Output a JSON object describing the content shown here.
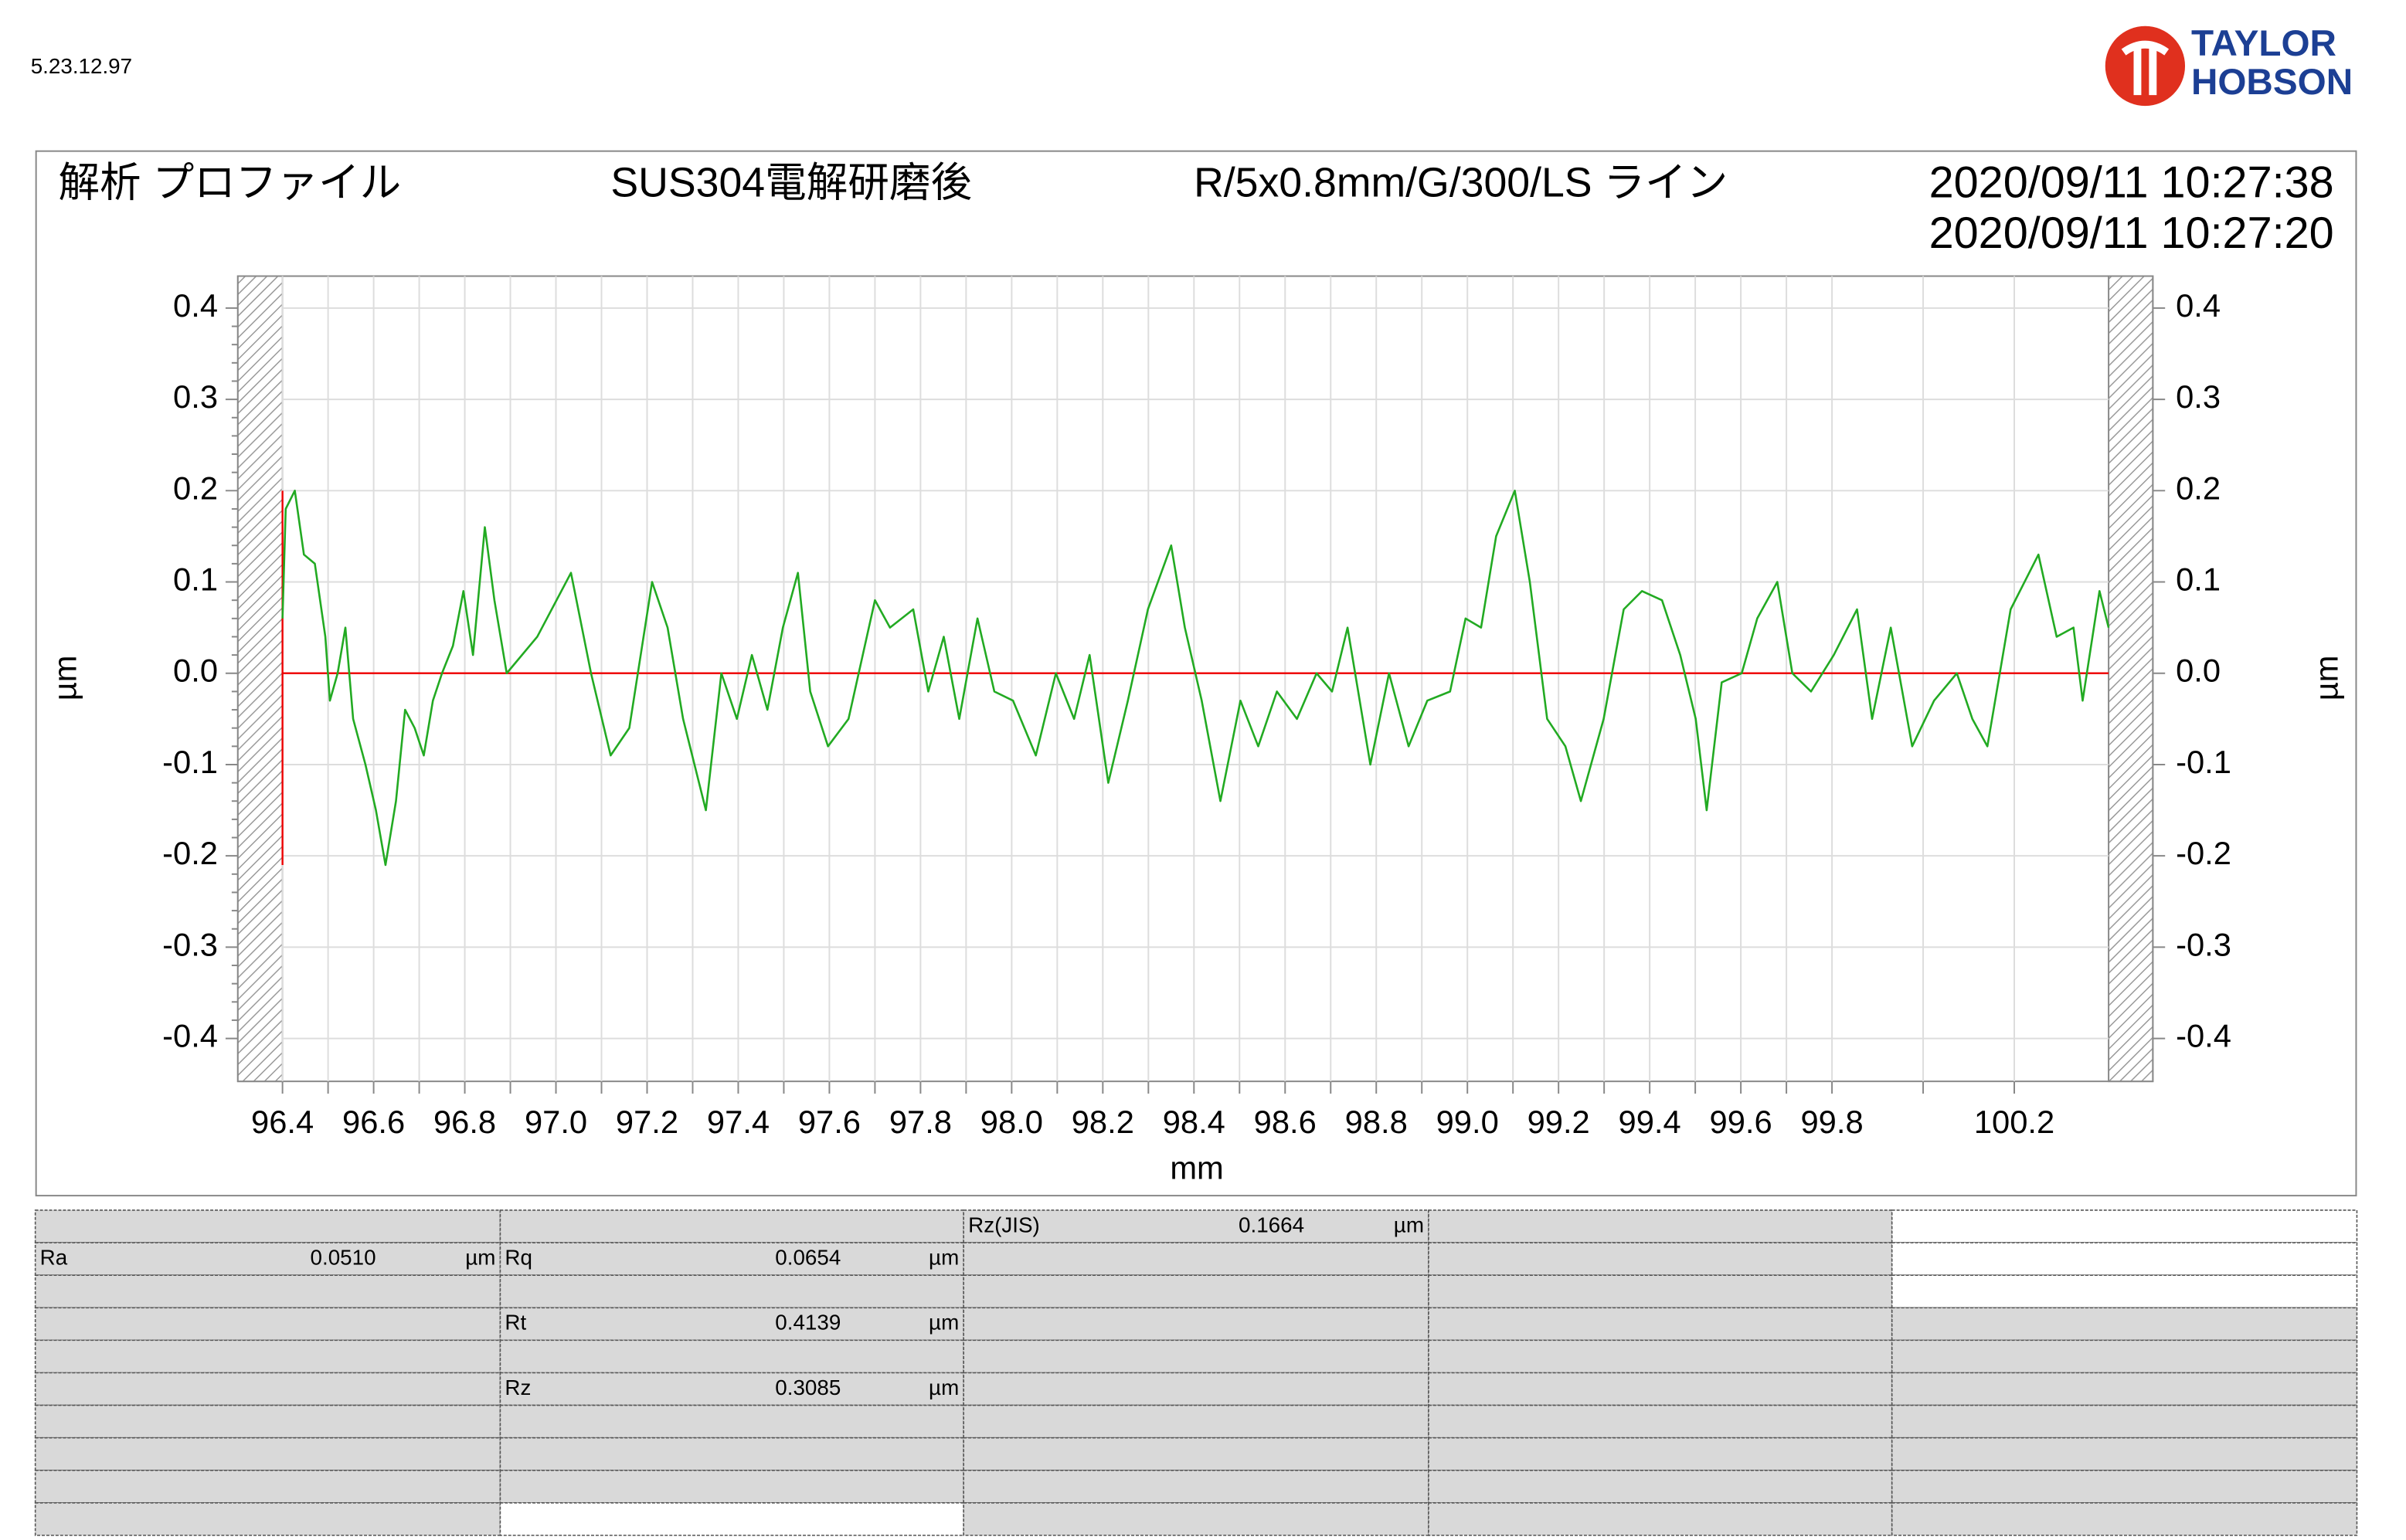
{
  "header": {
    "version": "5.23.12.97",
    "logo_line1": "TAYLOR",
    "logo_line2": "HOBSON",
    "analysis": "解析 プロファイル",
    "sample": "SUS304電解研磨後",
    "conditions": "R/5x0.8mm/G/300/LS ライン",
    "date1": "2020/09/11 10:27:38",
    "date2": "2020/09/11 10:27:20"
  },
  "chart_data": {
    "type": "line",
    "xlabel": "mm",
    "ylabel": "µm",
    "y2label": "µm",
    "xlim": [
      96.302,
      100.504
    ],
    "ylim": [
      -0.447,
      0.435
    ],
    "xticks": [
      96.4,
      96.6,
      96.8,
      {
        "value": 97.0,
        "label": "97.0"
      },
      97.2,
      97.4,
      97.6,
      97.8,
      {
        "value": 98.0,
        "label": "98.0"
      },
      98.2,
      98.4,
      98.6,
      98.8,
      {
        "value": 99.0,
        "label": "99.0"
      },
      99.2,
      99.4,
      99.6,
      99.8,
      100.2
    ],
    "yticks": [
      -0.4,
      -0.3,
      -0.2,
      -0.1,
      {
        "value": 0,
        "label": "0.0"
      },
      0.1,
      0.2,
      0.3,
      0.4
    ],
    "grid": true,
    "series": [
      {
        "color": "#22aa22",
        "x": [
          96.4,
          96.407,
          96.427,
          96.447,
          96.471,
          96.494,
          96.504,
          96.521,
          96.538,
          96.555,
          96.582,
          96.605,
          96.626,
          96.649,
          96.669,
          96.69,
          96.71,
          96.73,
          96.75,
          96.774,
          96.797,
          96.818,
          96.844,
          96.865,
          96.892,
          96.959,
          97.033,
          97.077,
          97.12,
          97.161,
          97.211,
          97.245,
          97.279,
          97.329,
          97.363,
          97.397,
          97.43,
          97.464,
          97.498,
          97.531,
          97.558,
          97.597,
          97.642,
          97.7,
          97.733,
          97.784,
          97.817,
          97.851,
          97.885,
          97.925,
          97.962,
          98.003,
          98.053,
          98.097,
          98.137,
          98.171,
          98.212,
          98.255,
          98.299,
          98.35,
          98.38,
          98.417,
          98.458,
          98.502,
          98.541,
          98.582,
          98.626,
          98.669,
          98.703,
          98.737,
          98.787,
          98.828,
          98.871,
          98.912,
          98.962,
          98.996,
          99.03,
          99.063,
          99.104,
          99.137,
          99.175,
          99.215,
          99.249,
          99.299,
          99.343,
          99.383,
          99.427,
          99.467,
          99.501,
          99.525,
          99.558,
          99.602,
          99.636,
          99.68,
          99.713,
          99.754,
          99.804,
          99.855,
          99.888,
          99.929,
          99.976,
          100.024,
          100.074,
          100.108,
          100.141,
          100.192,
          100.253,
          100.293,
          100.33,
          100.35,
          100.387,
          100.407
        ],
        "values": [
          0.06,
          0.18,
          0.2,
          0.13,
          0.12,
          0.04,
          -0.03,
          0.0,
          0.05,
          -0.05,
          -0.1,
          -0.15,
          -0.21,
          -0.14,
          -0.04,
          -0.06,
          -0.09,
          -0.03,
          0.0,
          0.03,
          0.09,
          0.02,
          0.16,
          0.08,
          0.0,
          0.04,
          0.11,
          0.0,
          -0.09,
          -0.06,
          0.1,
          0.05,
          -0.05,
          -0.15,
          0.0,
          -0.05,
          0.02,
          -0.04,
          0.05,
          0.11,
          -0.02,
          -0.08,
          -0.05,
          0.08,
          0.05,
          0.07,
          -0.02,
          0.04,
          -0.05,
          0.06,
          -0.02,
          -0.03,
          -0.09,
          0.0,
          -0.05,
          0.02,
          -0.12,
          -0.03,
          0.07,
          0.14,
          0.05,
          -0.03,
          -0.14,
          -0.03,
          -0.08,
          -0.02,
          -0.05,
          0.0,
          -0.02,
          0.05,
          -0.1,
          0.0,
          -0.08,
          -0.03,
          -0.02,
          0.06,
          0.05,
          0.15,
          0.2,
          0.1,
          -0.05,
          -0.08,
          -0.14,
          -0.05,
          0.07,
          0.09,
          0.08,
          0.02,
          -0.05,
          -0.15,
          -0.01,
          0.0,
          0.06,
          0.1,
          0.0,
          -0.02,
          0.02,
          0.07,
          -0.05,
          0.05,
          -0.08,
          -0.03,
          0.0,
          -0.05,
          -0.08,
          0.07,
          0.13,
          0.04,
          0.05,
          -0.03,
          0.09,
          0.05
        ]
      }
    ],
    "lines": [
      {
        "color": "#ee0000",
        "x": [
          96.4,
          100.407
        ],
        "y": [
          0,
          0
        ]
      },
      {
        "color": "#ee0000",
        "x": [
          96.4,
          96.4
        ],
        "y": [
          -0.21,
          0.2
        ]
      }
    ]
  },
  "table": {
    "parameters": [
      {
        "name": "Rz(JIS)",
        "value": "0.1664",
        "unit": "µm"
      },
      {
        "name": "Ra",
        "value": "0.0510",
        "unit": "µm"
      },
      {
        "name": "Rq",
        "value": "0.0654",
        "unit": "µm"
      },
      {
        "name": "Rt",
        "value": "0.4139",
        "unit": "µm"
      },
      {
        "name": "Rz",
        "value": "0.3085",
        "unit": "µm"
      }
    ]
  }
}
